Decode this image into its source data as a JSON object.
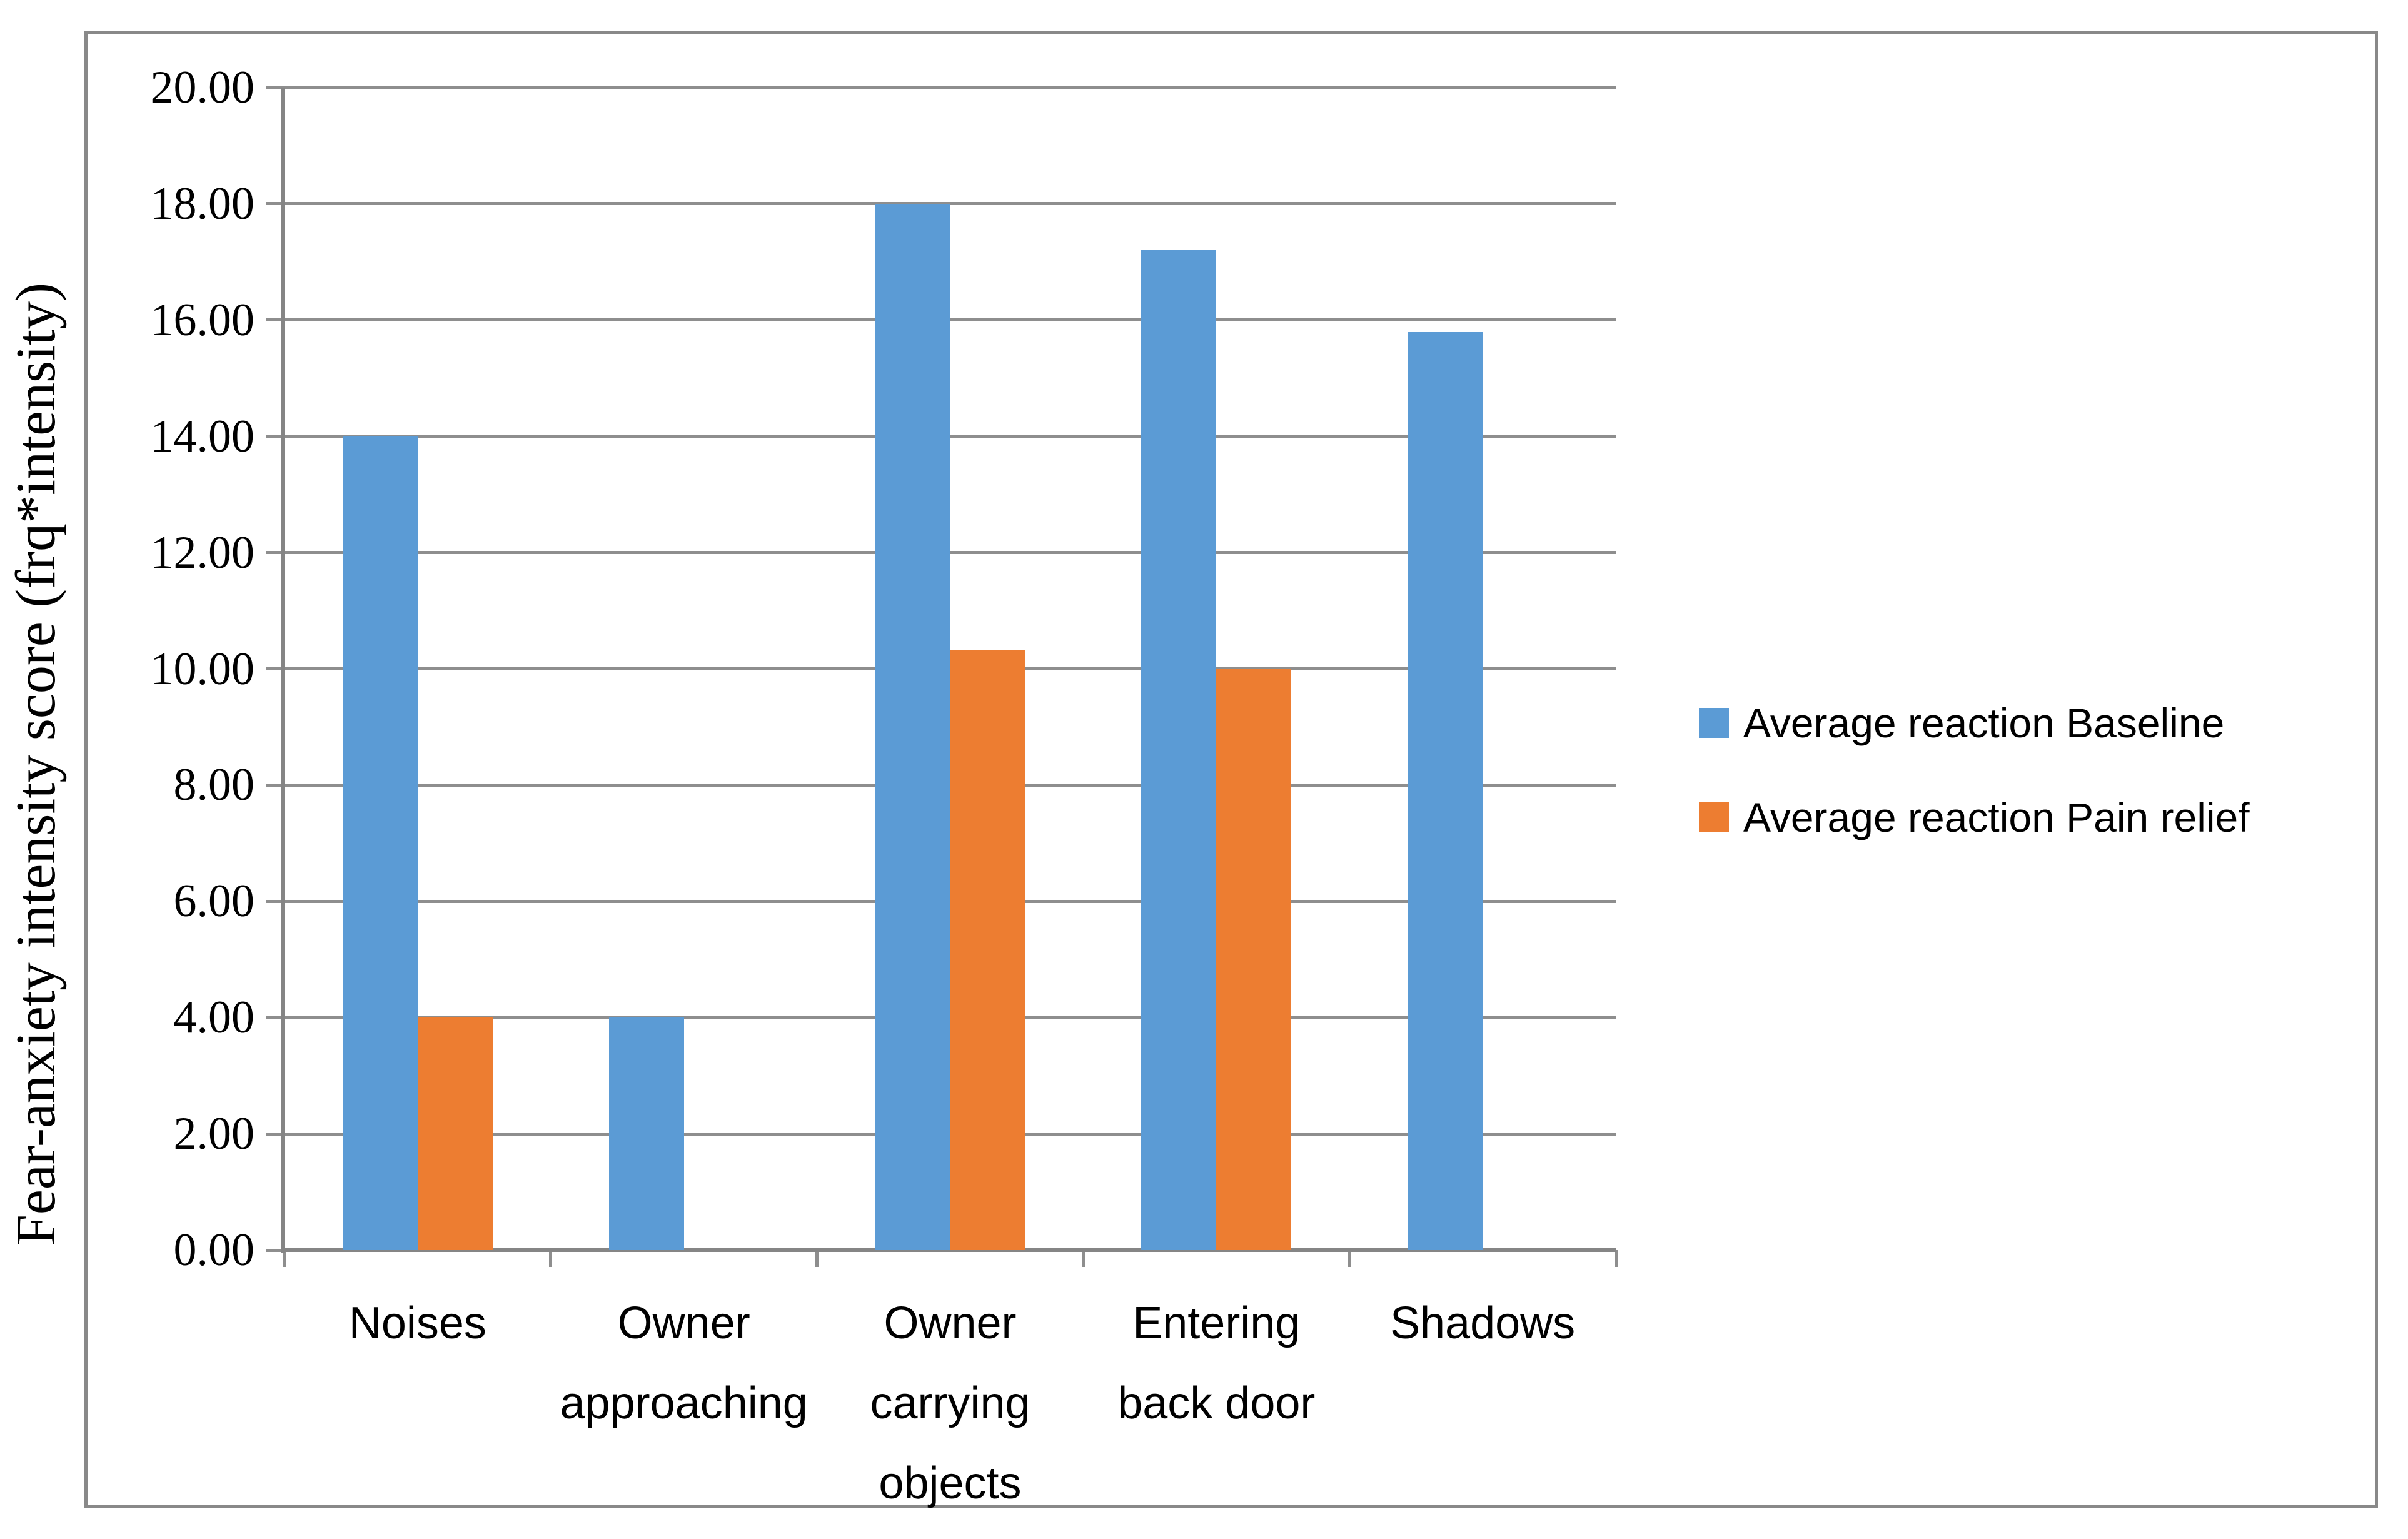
{
  "chart_data": {
    "type": "bar",
    "title": "",
    "categories": [
      "Noises",
      "Owner approaching",
      "Owner carrying objects",
      "Entering back door",
      "Shadows"
    ],
    "categories_lines": [
      [
        "Noises"
      ],
      [
        "Owner",
        "approaching"
      ],
      [
        "Owner",
        "carrying",
        "objects"
      ],
      [
        "Entering",
        "back door"
      ],
      [
        "Shadows"
      ]
    ],
    "series": [
      {
        "name": "Average reaction Baseline",
        "color": "#5B9BD5",
        "values": [
          14.0,
          4.0,
          18.0,
          17.2,
          15.79
        ]
      },
      {
        "name": "Average reaction Pain relief",
        "color": "#ED7D31",
        "values": [
          4.0,
          0,
          10.33,
          10.0,
          0
        ]
      }
    ],
    "xlabel": "",
    "ylabel": "Fear-anxiety intensity score (frq*intensity)",
    "ylim": [
      0,
      20
    ],
    "ytick_step": 2,
    "ytick_labels": [
      "0.00",
      "2.00",
      "4.00",
      "6.00",
      "8.00",
      "10.00",
      "12.00",
      "14.00",
      "16.00",
      "18.00",
      "20.00"
    ],
    "grid": true,
    "legend_position": "right"
  },
  "colors": {
    "baseline": "#5B9BD5",
    "pain_relief": "#ED7D31",
    "gridline": "#8e8e8e",
    "axis": "#858585",
    "frame_border": "#898989",
    "background": "#ffffff",
    "text": "#000000"
  }
}
